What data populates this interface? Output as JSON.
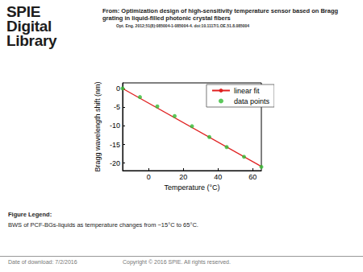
{
  "page": {
    "logo": [
      "SPIE",
      "Digital",
      "Library"
    ],
    "source": "From: Optimization design of high-sensitivity temperature sensor based on Bragg grating in liquid-filled photonic crystal fibers",
    "citation": "Opt. Eng. 2012;51(8):085004-1-085004-4. doi:10.1117/1.OE.51.8.085004",
    "legend_heading": "Figure Legend:",
    "legend_text": "BWS of PCF-BGs-liquids as temperature changes from −15°C to 65°C.",
    "date": "Date of download:  7/2/2016",
    "copyright": "Copyright © 2016 SPIE. All rights reserved."
  },
  "chart_data": {
    "type": "scatter",
    "x_label": "Temperature (°C)",
    "y_label": "Bragg wavelength shift (nm)",
    "series": [
      {
        "name": "linear fit",
        "type": "line",
        "color": "#e02020",
        "line_style": "solid",
        "x": [
          -15,
          65
        ],
        "values": [
          0,
          -20.9
        ]
      },
      {
        "name": "data points",
        "type": "scatter",
        "color": "#33bb33",
        "marker": "circle",
        "x": [
          -15,
          -5,
          5,
          15,
          25,
          35,
          45,
          55,
          65
        ],
        "values": [
          0,
          -2.3,
          -4.8,
          -7.4,
          -10.1,
          -13.0,
          -15.7,
          -18.3,
          -21.0
        ]
      }
    ],
    "xlim": [
      -15,
      65
    ],
    "xticks": [
      0,
      20,
      40,
      60
    ],
    "ylim": [
      -22,
      1.5
    ],
    "yticks": [
      -20,
      -15,
      -10,
      -5,
      0
    ],
    "grid": false,
    "legend": "upper right"
  }
}
